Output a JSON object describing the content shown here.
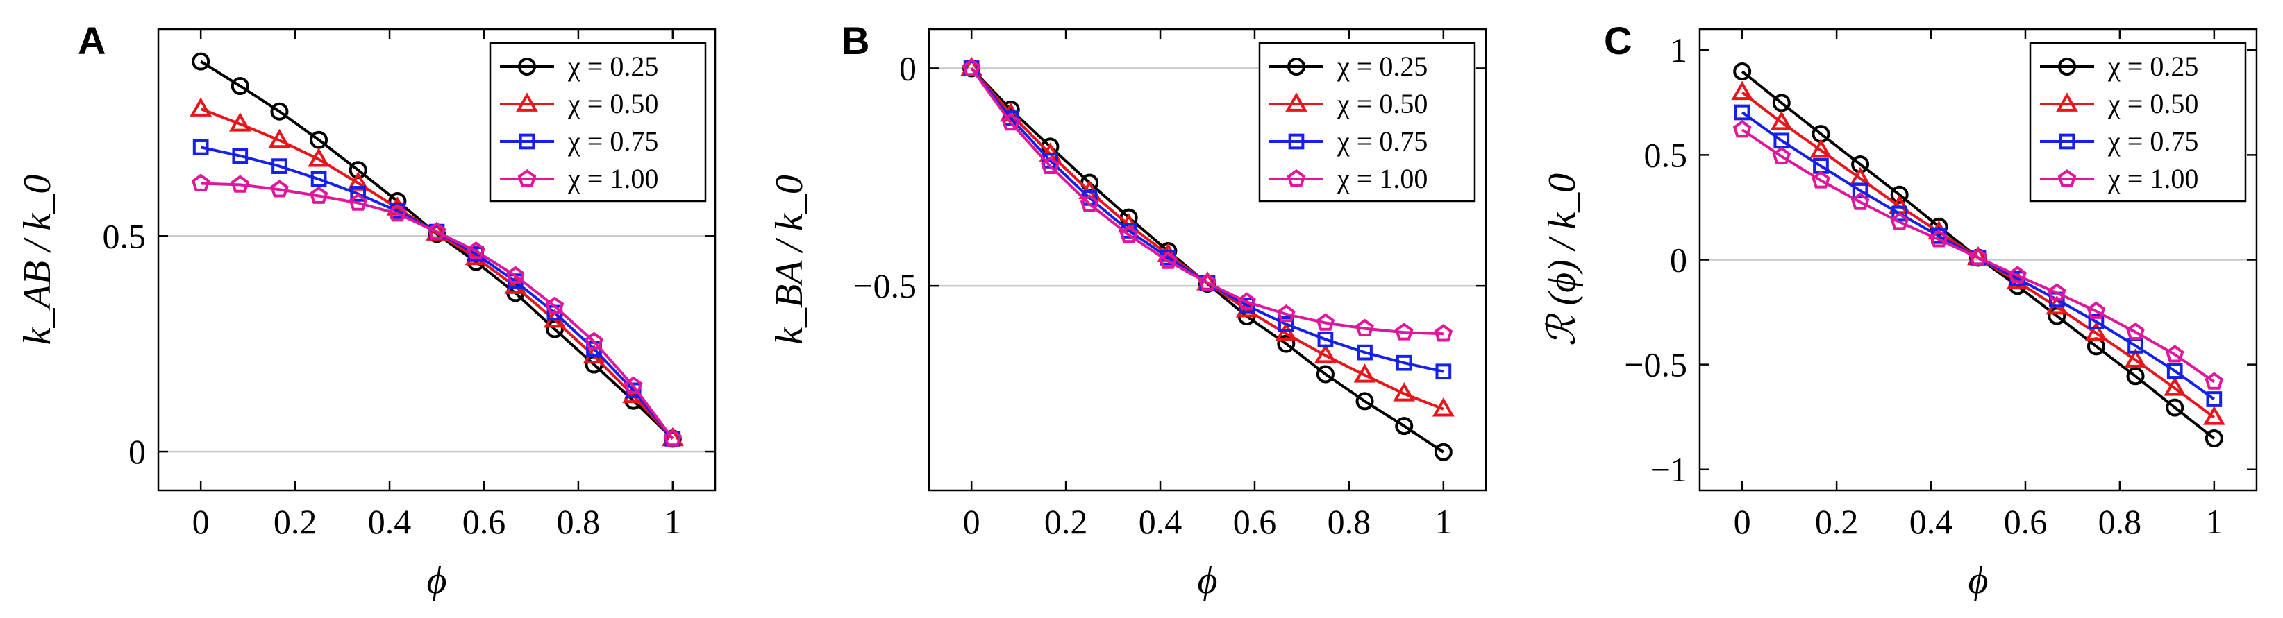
{
  "chart_data": [
    {
      "type": "line",
      "panel_label": "A",
      "ylabel": "k_AB / k_0",
      "xlabel": "ϕ",
      "xlim": [
        -0.09,
        1.09
      ],
      "ylim": [
        -0.09,
        0.98
      ],
      "xticks": [
        0,
        0.2,
        0.4,
        0.6,
        0.8,
        1
      ],
      "xtick_labels": [
        "0",
        "0.2",
        "0.4",
        "0.6",
        "0.8",
        "1"
      ],
      "yticks": [
        0,
        0.5
      ],
      "ytick_labels": [
        "0",
        "0.5"
      ],
      "gridlines_y": [
        0,
        0.5
      ],
      "legend_position": "top-right",
      "x": [
        0,
        0.0833,
        0.1667,
        0.25,
        0.3333,
        0.4167,
        0.5,
        0.5833,
        0.6667,
        0.75,
        0.8333,
        0.9167,
        1.0
      ],
      "series": [
        {
          "name": "χ = 0.25",
          "color": "#000000",
          "marker": "circle",
          "values": [
            0.905,
            0.848,
            0.789,
            0.723,
            0.653,
            0.581,
            0.505,
            0.44,
            0.368,
            0.284,
            0.202,
            0.118,
            0.03
          ]
        },
        {
          "name": "χ = 0.50",
          "color": "#e8161b",
          "marker": "triangle",
          "values": [
            0.795,
            0.76,
            0.722,
            0.678,
            0.623,
            0.565,
            0.507,
            0.45,
            0.383,
            0.305,
            0.222,
            0.13,
            0.03
          ]
        },
        {
          "name": "χ = 0.75",
          "color": "#1520e8",
          "marker": "square",
          "values": [
            0.706,
            0.686,
            0.662,
            0.632,
            0.598,
            0.558,
            0.51,
            0.458,
            0.395,
            0.322,
            0.238,
            0.142,
            0.03
          ]
        },
        {
          "name": "χ = 1.00",
          "color": "#e0179a",
          "marker": "pentagon",
          "values": [
            0.622,
            0.619,
            0.608,
            0.593,
            0.577,
            0.552,
            0.51,
            0.465,
            0.408,
            0.337,
            0.255,
            0.152,
            0.03
          ]
        }
      ]
    },
    {
      "type": "line",
      "panel_label": "B",
      "ylabel": "k_BA / k_0",
      "xlabel": "ϕ",
      "xlim": [
        -0.09,
        1.09
      ],
      "ylim": [
        -0.97,
        0.09
      ],
      "xticks": [
        0,
        0.2,
        0.4,
        0.6,
        0.8,
        1
      ],
      "xtick_labels": [
        "0",
        "0.2",
        "0.4",
        "0.6",
        "0.8",
        "1"
      ],
      "yticks": [
        0,
        -0.5
      ],
      "ytick_labels": [
        "0",
        "−0.5"
      ],
      "gridlines_y": [
        0,
        -0.5
      ],
      "legend_position": "top-right",
      "x": [
        0,
        0.0833,
        0.1667,
        0.25,
        0.3333,
        0.4167,
        0.5,
        0.5833,
        0.6667,
        0.75,
        0.8333,
        0.9167,
        1.0
      ],
      "series": [
        {
          "name": "χ = 0.25",
          "color": "#000000",
          "marker": "circle",
          "values": [
            0,
            -0.095,
            -0.18,
            -0.263,
            -0.343,
            -0.42,
            -0.495,
            -0.57,
            -0.633,
            -0.703,
            -0.765,
            -0.822,
            -0.882
          ]
        },
        {
          "name": "χ = 0.50",
          "color": "#e8161b",
          "marker": "triangle",
          "values": [
            0,
            -0.105,
            -0.197,
            -0.283,
            -0.36,
            -0.428,
            -0.493,
            -0.555,
            -0.61,
            -0.66,
            -0.705,
            -0.748,
            -0.783
          ]
        },
        {
          "name": "χ = 0.75",
          "color": "#1520e8",
          "marker": "square",
          "values": [
            0,
            -0.115,
            -0.212,
            -0.298,
            -0.373,
            -0.435,
            -0.493,
            -0.545,
            -0.588,
            -0.623,
            -0.653,
            -0.677,
            -0.697
          ]
        },
        {
          "name": "χ = 1.00",
          "color": "#e0179a",
          "marker": "pentagon",
          "values": [
            0,
            -0.125,
            -0.225,
            -0.312,
            -0.383,
            -0.443,
            -0.493,
            -0.537,
            -0.565,
            -0.585,
            -0.598,
            -0.607,
            -0.61
          ]
        }
      ]
    },
    {
      "type": "line",
      "panel_label": "C",
      "ylabel": "ℛ (ϕ) / k_0",
      "xlabel": "ϕ",
      "xlim": [
        -0.09,
        1.09
      ],
      "ylim": [
        -1.1,
        1.1
      ],
      "xticks": [
        0,
        0.2,
        0.4,
        0.6,
        0.8,
        1
      ],
      "xtick_labels": [
        "0",
        "0.2",
        "0.4",
        "0.6",
        "0.8",
        "1"
      ],
      "yticks": [
        1,
        0.5,
        0,
        -0.5,
        -1
      ],
      "ytick_labels": [
        "1",
        "0.5",
        "0",
        "−0.5",
        "−1"
      ],
      "gridlines_y": [
        0
      ],
      "legend_position": "top-right",
      "x": [
        0,
        0.0833,
        0.1667,
        0.25,
        0.3333,
        0.4167,
        0.5,
        0.5833,
        0.6667,
        0.75,
        0.8333,
        0.9167,
        1.0
      ],
      "series": [
        {
          "name": "χ = 0.25",
          "color": "#000000",
          "marker": "circle",
          "values": [
            0.898,
            0.748,
            0.6,
            0.455,
            0.31,
            0.158,
            0.01,
            -0.125,
            -0.268,
            -0.413,
            -0.555,
            -0.705,
            -0.852
          ]
        },
        {
          "name": "χ = 0.50",
          "color": "#e8161b",
          "marker": "triangle",
          "values": [
            0.798,
            0.655,
            0.522,
            0.388,
            0.255,
            0.133,
            0.01,
            -0.105,
            -0.225,
            -0.35,
            -0.478,
            -0.613,
            -0.752
          ]
        },
        {
          "name": "χ = 0.75",
          "color": "#1520e8",
          "marker": "square",
          "values": [
            0.703,
            0.568,
            0.447,
            0.33,
            0.22,
            0.113,
            0.01,
            -0.09,
            -0.19,
            -0.295,
            -0.41,
            -0.53,
            -0.665
          ]
        },
        {
          "name": "χ = 1.00",
          "color": "#e0179a",
          "marker": "pentagon",
          "values": [
            0.62,
            0.493,
            0.378,
            0.275,
            0.18,
            0.097,
            0.01,
            -0.075,
            -0.158,
            -0.245,
            -0.345,
            -0.452,
            -0.582
          ]
        }
      ]
    }
  ]
}
